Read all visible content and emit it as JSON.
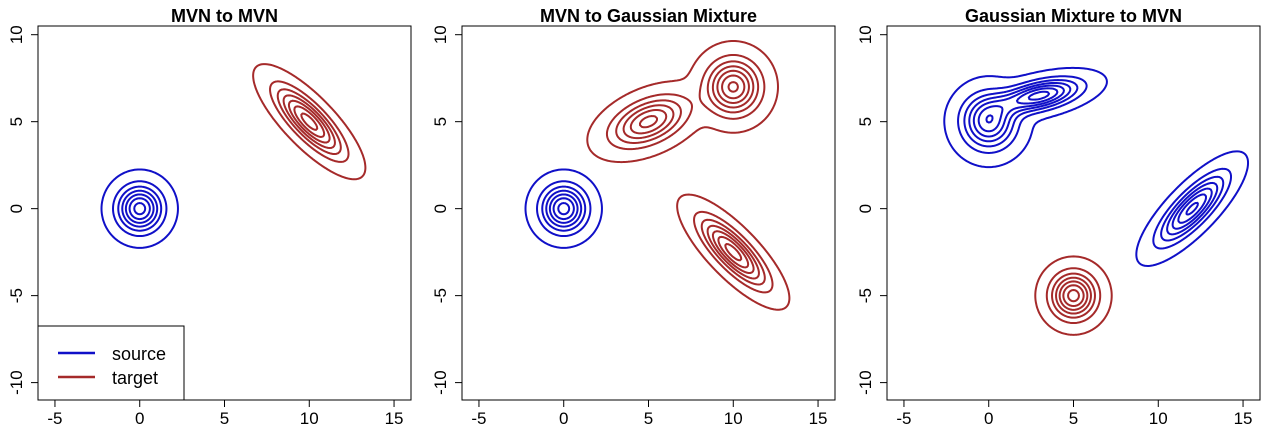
{
  "colors": {
    "source": "#1010c8",
    "target": "#a52a2a"
  },
  "chart_data": [
    {
      "type": "contour",
      "title": "MVN to MVN",
      "xlim": [
        -6,
        16
      ],
      "ylim": [
        -11,
        10.5
      ],
      "xticks": [
        -5,
        0,
        5,
        10,
        15
      ],
      "yticks": [
        -10,
        -5,
        0,
        5,
        10
      ],
      "legend": {
        "placement": "bottom-left",
        "entries": [
          "source",
          "target"
        ]
      },
      "distributions": [
        {
          "role": "source",
          "components": [
            {
              "mean": [
                0,
                0
              ],
              "sd": [
                0.85,
                0.85
              ],
              "rho": 0,
              "weight": 1
            }
          ]
        },
        {
          "role": "target",
          "components": [
            {
              "mean": [
                10,
                5
              ],
              "sd": [
                1.25,
                1.25
              ],
              "rho": -0.8,
              "weight": 1
            }
          ]
        }
      ]
    },
    {
      "type": "contour",
      "title": "MVN to Gaussian Mixture",
      "xlim": [
        -6,
        16
      ],
      "ylim": [
        -11,
        10.5
      ],
      "xticks": [
        -5,
        0,
        5,
        10,
        15
      ],
      "yticks": [
        -10,
        -5,
        0,
        5,
        10
      ],
      "distributions": [
        {
          "role": "source",
          "components": [
            {
              "mean": [
                0,
                0
              ],
              "sd": [
                0.85,
                0.85
              ],
              "rho": 0,
              "weight": 1
            }
          ]
        },
        {
          "role": "target",
          "components": [
            {
              "mean": [
                10,
                -2.5
              ],
              "sd": [
                1.25,
                1.25
              ],
              "rho": -0.8,
              "weight": 0.33
            },
            {
              "mean": [
                5,
                5
              ],
              "sd": [
                1.4,
                0.9
              ],
              "rho": 0.45,
              "weight": 0.33
            },
            {
              "mean": [
                10,
                7
              ],
              "sd": [
                1.0,
                1.0
              ],
              "rho": 0,
              "weight": 0.34
            }
          ]
        }
      ]
    },
    {
      "type": "contour",
      "title": "Gaussian Mixture to MVN",
      "xlim": [
        -6,
        16
      ],
      "ylim": [
        -11,
        10.5
      ],
      "xticks": [
        -5,
        0,
        5,
        10,
        15
      ],
      "yticks": [
        -10,
        -5,
        0,
        5,
        10
      ],
      "distributions": [
        {
          "role": "source",
          "components": [
            {
              "mean": [
                0,
                5
              ],
              "sd": [
                1.0,
                1.0
              ],
              "rho": 0,
              "weight": 0.35
            },
            {
              "mean": [
                3,
                6.5
              ],
              "sd": [
                1.5,
                0.6
              ],
              "rho": 0.5,
              "weight": 0.3
            },
            {
              "mean": [
                12,
                0
              ],
              "sd": [
                1.25,
                1.25
              ],
              "rho": 0.8,
              "weight": 0.35
            }
          ]
        },
        {
          "role": "target",
          "components": [
            {
              "mean": [
                5,
                -5
              ],
              "sd": [
                0.85,
                0.85
              ],
              "rho": 0,
              "weight": 1
            }
          ]
        }
      ]
    }
  ]
}
